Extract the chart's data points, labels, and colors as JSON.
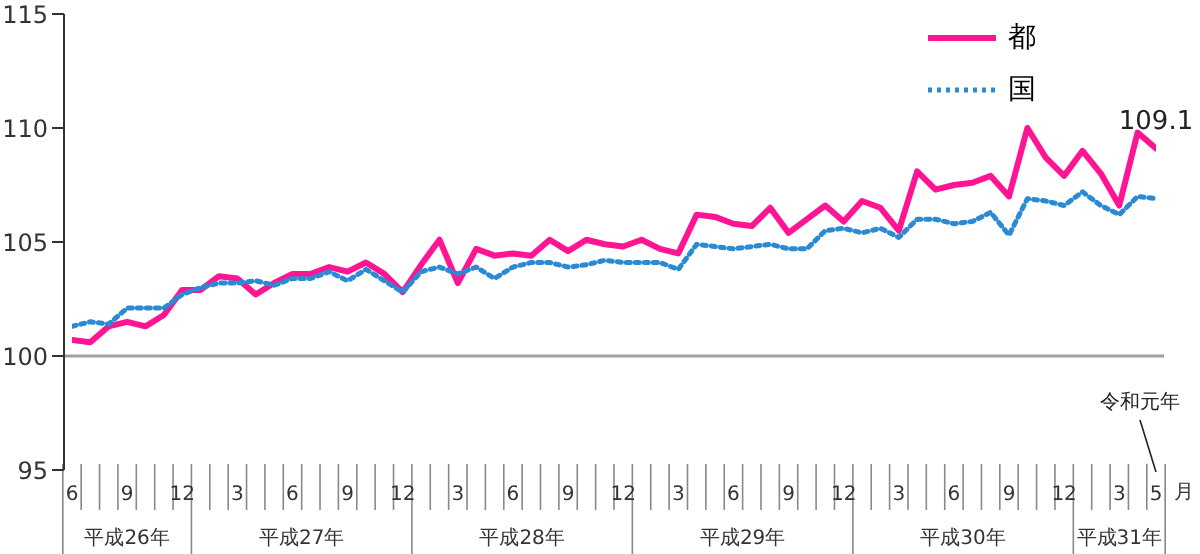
{
  "chart_data": {
    "type": "line",
    "categories": [
      "6",
      null,
      null,
      "9",
      null,
      null,
      "12",
      null,
      null,
      "3",
      null,
      null,
      "6",
      null,
      null,
      "9",
      null,
      null,
      "12",
      null,
      null,
      "3",
      null,
      null,
      "6",
      null,
      null,
      "9",
      null,
      null,
      "12",
      null,
      null,
      "3",
      null,
      null,
      "6",
      null,
      null,
      "9",
      null,
      null,
      "12",
      null,
      null,
      "3",
      null,
      null,
      "6",
      null,
      null,
      "9",
      null,
      null,
      "12",
      null,
      null,
      "3",
      null,
      "5"
    ],
    "series": [
      {
        "name": "都",
        "color": "#ff1493",
        "line_style": "solid",
        "values": [
          100.7,
          100.6,
          101.3,
          101.5,
          101.3,
          101.8,
          102.9,
          102.9,
          103.5,
          103.4,
          102.7,
          103.2,
          103.6,
          103.6,
          103.9,
          103.7,
          104.1,
          103.6,
          102.8,
          104.0,
          105.1,
          103.2,
          104.7,
          104.4,
          104.5,
          104.4,
          105.1,
          104.6,
          105.1,
          104.9,
          104.8,
          105.1,
          104.7,
          104.5,
          106.2,
          106.1,
          105.8,
          105.7,
          106.5,
          105.4,
          106.0,
          106.6,
          105.9,
          106.8,
          106.5,
          105.5,
          108.1,
          107.3,
          107.5,
          107.6,
          107.9,
          107.0,
          110.0,
          108.7,
          107.9,
          109.0,
          108.0,
          106.6,
          109.8,
          109.1
        ],
        "value_labels": [
          null,
          null,
          null,
          null,
          null,
          null,
          null,
          null,
          null,
          null,
          null,
          null,
          null,
          null,
          null,
          null,
          null,
          null,
          null,
          null,
          null,
          null,
          null,
          null,
          null,
          null,
          null,
          null,
          null,
          null,
          null,
          null,
          null,
          null,
          null,
          null,
          null,
          null,
          null,
          null,
          null,
          null,
          null,
          null,
          null,
          null,
          null,
          null,
          null,
          null,
          null,
          null,
          null,
          null,
          null,
          null,
          null,
          null,
          null,
          "109.1"
        ]
      },
      {
        "name": "国",
        "color": "#2a8ad4",
        "line_style": "dotted",
        "values": [
          101.3,
          101.5,
          101.4,
          102.1,
          102.1,
          102.1,
          102.7,
          103.0,
          103.2,
          103.2,
          103.3,
          103.1,
          103.4,
          103.4,
          103.7,
          103.3,
          103.8,
          103.3,
          102.8,
          103.7,
          103.9,
          103.6,
          103.9,
          103.4,
          103.9,
          104.1,
          104.1,
          103.9,
          104.0,
          104.2,
          104.1,
          104.1,
          104.1,
          103.8,
          104.9,
          104.8,
          104.7,
          104.8,
          104.9,
          104.7,
          104.7,
          105.5,
          105.6,
          105.4,
          105.6,
          105.2,
          106.0,
          106.0,
          105.8,
          105.9,
          106.3,
          105.3,
          106.9,
          106.8,
          106.6,
          107.2,
          106.6,
          106.2,
          107.0,
          106.9
        ]
      }
    ],
    "ylim": [
      95,
      115
    ],
    "yticks": [
      95,
      100,
      105,
      110,
      115
    ],
    "ref_lines": [
      {
        "axis": "y",
        "value": 100,
        "color": "#a0a0a0"
      }
    ],
    "annotations": [
      "平成26年",
      "平成27年",
      "平成28年",
      "平成29年",
      "平成30年",
      "平成31年",
      "令和元年",
      "月"
    ],
    "legend": "top right",
    "grid": false,
    "marker": "none"
  }
}
